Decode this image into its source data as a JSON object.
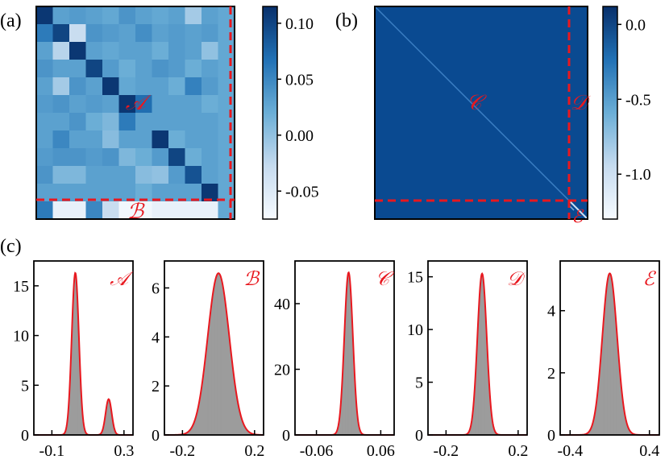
{
  "chart_data": {
    "panel_labels": [
      "(a)",
      "(b)",
      "(c)"
    ],
    "heatmap_a": {
      "type": "heatmap",
      "size": 12,
      "colorbar": {
        "ticks": [
          "0.10",
          "0.05",
          "0.00",
          "-0.05"
        ],
        "tick_values": [
          0.1,
          0.05,
          0.0,
          -0.05
        ],
        "range": [
          -0.075,
          0.115
        ]
      },
      "values": [
        [
          0.11,
          0.03,
          0.035,
          0.03,
          0.025,
          0.04,
          0.03,
          0.025,
          0.03,
          -0.01,
          0.03,
          0.025
        ],
        [
          0.06,
          0.1,
          -0.03,
          0.04,
          0.035,
          0.03,
          0.045,
          0.03,
          0.035,
          0.03,
          0.035,
          0.025
        ],
        [
          0.03,
          -0.02,
          0.11,
          0.03,
          0.025,
          0.03,
          0.03,
          0.02,
          0.035,
          0.03,
          0.0,
          0.025
        ],
        [
          0.04,
          0.03,
          0.03,
          0.1,
          0.035,
          0.02,
          0.03,
          0.04,
          0.035,
          0.02,
          0.03,
          0.025
        ],
        [
          0.03,
          -0.01,
          0.04,
          0.03,
          0.11,
          0.025,
          0.03,
          0.03,
          0.02,
          0.055,
          0.035,
          0.025
        ],
        [
          0.035,
          0.04,
          0.03,
          0.035,
          0.03,
          0.11,
          0.07,
          0.03,
          0.03,
          0.03,
          0.02,
          0.025
        ],
        [
          0.03,
          0.03,
          0.04,
          0.02,
          0.01,
          0.06,
          0.03,
          0.03,
          0.03,
          0.03,
          0.03,
          0.025
        ],
        [
          0.03,
          0.05,
          0.03,
          0.03,
          0.005,
          0.03,
          0.03,
          0.11,
          0.02,
          0.03,
          0.03,
          0.025
        ],
        [
          0.035,
          0.04,
          0.04,
          0.035,
          0.04,
          0.01,
          0.02,
          0.035,
          0.1,
          0.02,
          0.03,
          0.025
        ],
        [
          0.04,
          0.01,
          0.01,
          0.03,
          0.03,
          0.03,
          0.005,
          0.0,
          0.035,
          0.09,
          0.03,
          0.025
        ],
        [
          0.03,
          0.03,
          0.03,
          0.03,
          0.03,
          0.03,
          0.02,
          0.03,
          0.03,
          0.03,
          0.11,
          0.025
        ],
        [
          0.06,
          -0.06,
          -0.06,
          0.05,
          -0.03,
          -0.07,
          -0.07,
          -0.06,
          -0.06,
          -0.06,
          -0.06,
          0.025
        ]
      ],
      "region_labels": {
        "A": "𝒜",
        "B": "ℬ"
      }
    },
    "heatmap_b": {
      "type": "heatmap",
      "description_values": {
        "background": 0.0,
        "diagonal": -0.6,
        "corner": -1.2
      },
      "colorbar": {
        "ticks": [
          "0.0",
          "-0.5",
          "-1.0"
        ],
        "tick_values": [
          0.0,
          -0.5,
          -1.0
        ],
        "range": [
          -1.3,
          0.12
        ]
      },
      "region_labels": {
        "C": "𝒞",
        "D": "𝒟",
        "E": "ℰ"
      }
    },
    "histograms": [
      {
        "type": "area",
        "label": "𝒜",
        "xlim": [
          -0.2,
          0.35
        ],
        "ylim": [
          0,
          17.5
        ],
        "xticks": [
          -0.1,
          0.3
        ],
        "xtick_labels": [
          "-0.1",
          "0.3"
        ],
        "yticks": [
          0,
          5,
          10,
          15
        ],
        "ytick_labels": [
          "0",
          "5",
          "10",
          "15"
        ],
        "components": [
          {
            "mu": 0.03,
            "sigma": 0.02,
            "peak": 16.3
          },
          {
            "mu": 0.215,
            "sigma": 0.017,
            "peak": 3.6
          }
        ]
      },
      {
        "type": "area",
        "label": "ℬ",
        "xlim": [
          -0.3,
          0.25
        ],
        "ylim": [
          0,
          7.1
        ],
        "xticks": [
          -0.2,
          0.2
        ],
        "xtick_labels": [
          "-0.2",
          "0.2"
        ],
        "yticks": [
          0,
          2,
          4,
          6
        ],
        "ytick_labels": [
          "0",
          "2",
          "4",
          "6"
        ],
        "components": [
          {
            "mu": 0.0,
            "sigma": 0.06,
            "peak": 6.6
          }
        ]
      },
      {
        "type": "area",
        "label": "𝒞",
        "xlim": [
          -0.1,
          0.085
        ],
        "ylim": [
          0,
          53
        ],
        "xticks": [
          -0.06,
          0.06
        ],
        "xtick_labels": [
          "-0.06",
          "0.06"
        ],
        "yticks": [
          0,
          20,
          40
        ],
        "ytick_labels": [
          "0",
          "20",
          "40"
        ],
        "components": [
          {
            "mu": 0.0,
            "sigma": 0.008,
            "peak": 49.5
          }
        ]
      },
      {
        "type": "area",
        "label": "𝒟",
        "xlim": [
          -0.3,
          0.25
        ],
        "ylim": [
          0,
          16.5
        ],
        "xticks": [
          -0.2,
          0.2
        ],
        "xtick_labels": [
          "-0.2",
          "0.2"
        ],
        "yticks": [
          0,
          5,
          10,
          15
        ],
        "ytick_labels": [
          "0",
          "5",
          "10",
          "15"
        ],
        "components": [
          {
            "mu": 0.0,
            "sigma": 0.026,
            "peak": 15.3
          }
        ]
      },
      {
        "type": "area",
        "label": "ℰ",
        "xlim": [
          -0.5,
          0.5
        ],
        "ylim": [
          0,
          5.6
        ],
        "xticks": [
          -0.4,
          0.4
        ],
        "xtick_labels": [
          "-0.4",
          "0.4"
        ],
        "yticks": [
          0,
          2,
          4
        ],
        "ytick_labels": [
          "0",
          "2",
          "4"
        ],
        "components": [
          {
            "mu": 0.0,
            "sigma": 0.075,
            "peak": 5.2
          }
        ]
      }
    ],
    "colors": {
      "curve": "#e8181f",
      "fill": "#a8a8a8",
      "dashed": "#e8181f",
      "dark": "#08458f"
    }
  }
}
